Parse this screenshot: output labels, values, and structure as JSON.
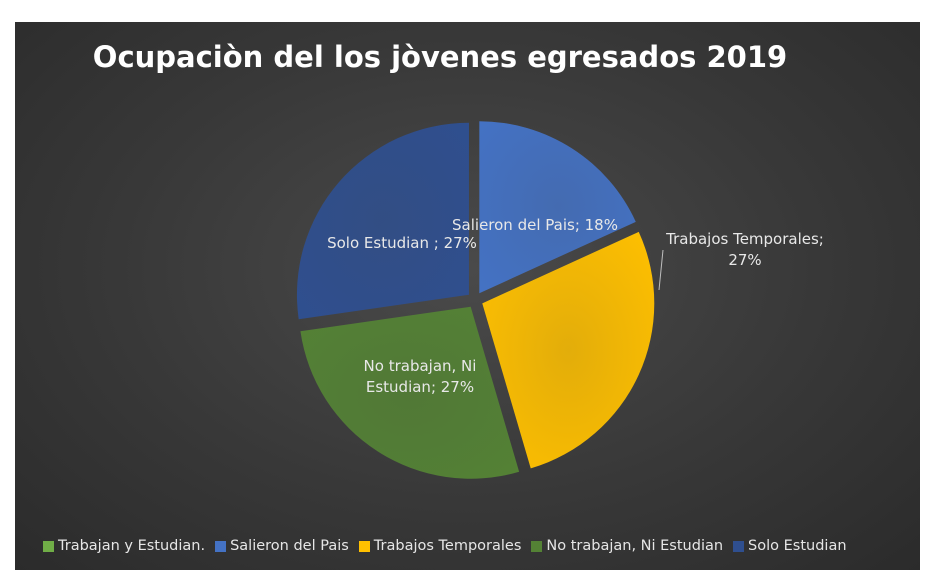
{
  "chart_data": {
    "type": "pie",
    "title": "Ocupaciòn del los jòvenes egresados 2019",
    "categories": [
      "Trabajan y Estudian.",
      "Salieron del Pais",
      "Trabajos Temporales",
      "No trabajan, Ni Estudian",
      "Solo Estudian"
    ],
    "values": [
      0,
      18,
      27,
      27,
      27
    ],
    "data_labels": [
      "",
      "Salieron del Pais; 18%",
      [
        "Trabajos Temporales;",
        "27%"
      ],
      [
        "No trabajan, Ni",
        "Estudian; 27%"
      ],
      "Solo Estudian ; 27%"
    ],
    "colors": [
      "#70ad47",
      "#4472c4",
      "#ffc000",
      "#548235",
      "#2f4f8f"
    ],
    "exploded": true,
    "legend_position": "bottom"
  }
}
